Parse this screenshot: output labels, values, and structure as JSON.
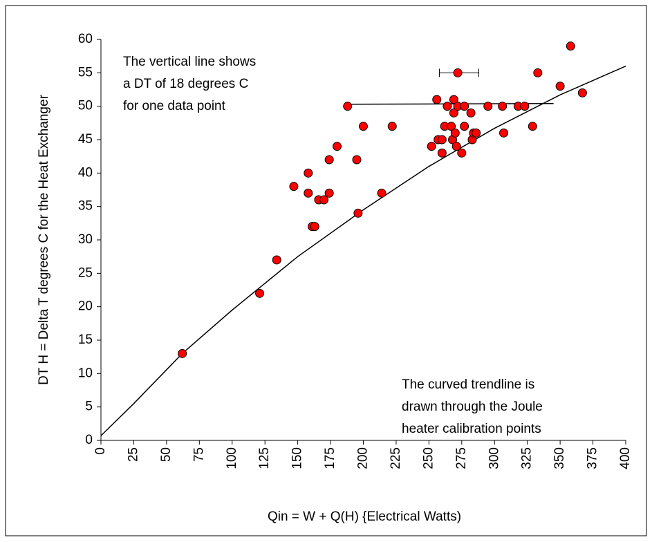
{
  "chart_data": {
    "type": "scatter",
    "x_label": "Qin = W + Q(H) {Electrical Watts)",
    "y_label": "DT H = Delta T degrees C for the Heat Exchanger",
    "annotations": [
      [
        "The vertical line shows",
        "a DT of 18 degrees C",
        "for one data point"
      ],
      [
        "The curved trendline is",
        "drawn through the Joule",
        "heater calibration points"
      ]
    ],
    "xlim": [
      0,
      400
    ],
    "ylim": [
      0,
      60
    ],
    "xticks": [
      0,
      25,
      50,
      75,
      100,
      125,
      150,
      175,
      200,
      225,
      250,
      275,
      300,
      325,
      350,
      375,
      400
    ],
    "yticks": [
      0,
      5,
      10,
      15,
      20,
      25,
      30,
      35,
      40,
      45,
      50,
      55,
      60
    ],
    "grid": false,
    "series": [
      {
        "color": "#ff0000",
        "x": [
          62,
          121,
          134,
          147,
          158,
          158,
          161,
          163,
          166,
          170,
          174,
          174,
          180,
          188,
          195,
          196,
          200,
          214,
          222,
          252,
          256,
          257,
          260,
          260,
          262,
          264,
          267,
          268,
          269,
          269,
          270,
          271,
          272,
          272,
          275,
          277,
          277,
          282,
          283,
          284,
          286,
          295,
          306,
          307,
          318,
          323,
          329,
          333,
          350,
          358,
          367
        ],
        "values": [
          13,
          22,
          27,
          38,
          40,
          37,
          32,
          32,
          36,
          36,
          42,
          37,
          44,
          50,
          42,
          34,
          47,
          37,
          47,
          44,
          51,
          45,
          43,
          45,
          47,
          50,
          47,
          45,
          51,
          49,
          46,
          44,
          55,
          50,
          43,
          47,
          50,
          49,
          45,
          46,
          46,
          50,
          50,
          46,
          50,
          50,
          47,
          55,
          53,
          59,
          52
        ]
      }
    ],
    "trendline": {
      "color": "#000000",
      "x": [
        0,
        25,
        62,
        100,
        150,
        200,
        250,
        300,
        350,
        400
      ],
      "values": [
        0.7,
        5.5,
        13,
        19.5,
        27.5,
        34.5,
        41,
        46.7,
        51.7,
        56
      ]
    },
    "horizontal_line": {
      "color": "#000000",
      "x": [
        188,
        345
      ],
      "values": [
        50.3,
        50.4
      ]
    },
    "error_bar": {
      "color": "#000000",
      "y": 55,
      "xmin": 258,
      "xmax": 288
    }
  }
}
